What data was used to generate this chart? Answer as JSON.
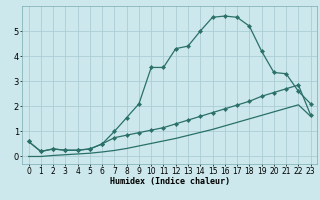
{
  "title": "",
  "xlabel": "Humidex (Indice chaleur)",
  "ylabel": "",
  "bg_color": "#cce8ec",
  "grid_color": "#aacdd4",
  "line_color": "#2a7068",
  "xlim": [
    -0.5,
    23.5
  ],
  "ylim": [
    -0.3,
    6.0
  ],
  "x": [
    0,
    1,
    2,
    3,
    4,
    5,
    6,
    7,
    8,
    9,
    10,
    11,
    12,
    13,
    14,
    15,
    16,
    17,
    18,
    19,
    20,
    21,
    22,
    23
  ],
  "line1": [
    0.6,
    0.2,
    0.3,
    0.25,
    0.25,
    0.3,
    0.5,
    1.0,
    1.55,
    2.1,
    3.55,
    3.55,
    4.3,
    4.4,
    5.0,
    5.55,
    5.6,
    5.55,
    5.2,
    4.2,
    3.35,
    3.3,
    2.6,
    2.1
  ],
  "line2": [
    0.6,
    0.2,
    0.3,
    0.25,
    0.25,
    0.3,
    0.5,
    0.75,
    0.85,
    0.95,
    1.05,
    1.15,
    1.3,
    1.45,
    1.6,
    1.75,
    1.9,
    2.05,
    2.2,
    2.4,
    2.55,
    2.7,
    2.85,
    1.65
  ],
  "line3": [
    0.0,
    0.0,
    0.04,
    0.07,
    0.1,
    0.13,
    0.18,
    0.24,
    0.32,
    0.42,
    0.52,
    0.62,
    0.72,
    0.84,
    0.96,
    1.08,
    1.22,
    1.36,
    1.5,
    1.64,
    1.78,
    1.92,
    2.06,
    1.6
  ],
  "yticks": [
    0,
    1,
    2,
    3,
    4,
    5
  ],
  "xticks": [
    0,
    1,
    2,
    3,
    4,
    5,
    6,
    7,
    8,
    9,
    10,
    11,
    12,
    13,
    14,
    15,
    16,
    17,
    18,
    19,
    20,
    21,
    22,
    23
  ],
  "tick_fontsize": 5.5,
  "xlabel_fontsize": 6.0,
  "marker_size": 2.2,
  "line_width": 0.9
}
